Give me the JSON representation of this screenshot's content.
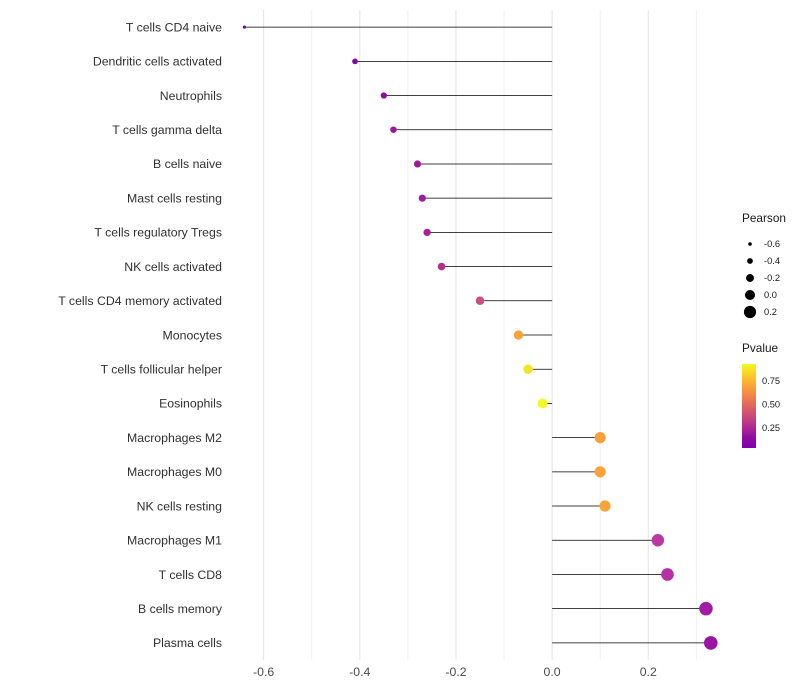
{
  "chart_data": {
    "type": "lollipop",
    "title": "",
    "xlabel": "",
    "ylabel": "",
    "x_ticks": [
      -0.6,
      -0.4,
      -0.2,
      0.0,
      0.2
    ],
    "x_tick_labels": [
      "-0.6",
      "-0.4",
      "-0.2",
      "0.0",
      "0.2"
    ],
    "xlim": [
      -0.67,
      0.37
    ],
    "baseline": 0,
    "grid": "vertical-major-and-minor",
    "stem_color": "#000000",
    "categories": [
      "T cells CD4 naive",
      "Dendritic cells activated",
      "Neutrophils",
      "T cells gamma delta",
      "B cells naive",
      "Mast cells resting",
      "T cells regulatory  Tregs",
      "NK cells activated",
      "T cells CD4 memory activated",
      "Monocytes",
      "T cells follicular helper",
      "Eosinophils",
      "Macrophages M2",
      "Macrophages M0",
      "NK cells resting",
      "Macrophages M1",
      "T cells CD8",
      "B cells memory",
      "Plasma cells"
    ],
    "series": [
      {
        "name": "Pearson",
        "values": [
          -0.64,
          -0.41,
          -0.35,
          -0.33,
          -0.28,
          -0.27,
          -0.26,
          -0.23,
          -0.15,
          -0.07,
          -0.05,
          -0.02,
          0.1,
          0.1,
          0.11,
          0.22,
          0.24,
          0.32,
          0.33
        ],
        "point_colors": [
          "#7102a8",
          "#8305a7",
          "#900da4",
          "#9c179e",
          "#9c179e",
          "#a01a9c",
          "#a62098",
          "#b42e8d",
          "#c94f7c",
          "#fba238",
          "#f4e428",
          "#f0f921",
          "#f8a13c",
          "#fba238",
          "#fba238",
          "#bd37a3",
          "#b631a5",
          "#a21ba5",
          "#9a15a5"
        ]
      }
    ],
    "legend": {
      "pearson_size": {
        "title": "Pearson",
        "labels": [
          "-0.6",
          "-0.4",
          "-0.2",
          "0.0",
          "0.2"
        ],
        "values": [
          -0.6,
          -0.4,
          -0.2,
          0.0,
          0.2
        ],
        "dot_color": "#000000"
      },
      "pvalue_color": {
        "title": "Pvalue",
        "labels": [
          "0.75",
          "0.50",
          "0.25"
        ],
        "gradient_top_to_bottom": [
          "#f0f921",
          "#fcce25",
          "#fca636",
          "#f2844b",
          "#e16462",
          "#cc4778",
          "#b12a90",
          "#8f0da4",
          "#7e03a8"
        ]
      }
    }
  }
}
